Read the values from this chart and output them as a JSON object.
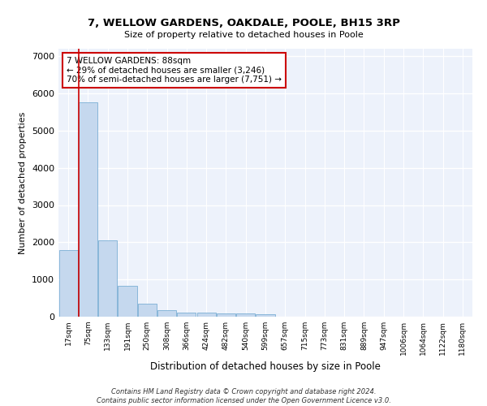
{
  "title": "7, WELLOW GARDENS, OAKDALE, POOLE, BH15 3RP",
  "subtitle": "Size of property relative to detached houses in Poole",
  "xlabel": "Distribution of detached houses by size in Poole",
  "ylabel": "Number of detached properties",
  "bar_color": "#c5d8ee",
  "bar_edge_color": "#7bafd4",
  "highlight_color": "#cc0000",
  "background_color": "#edf2fb",
  "grid_color": "#ffffff",
  "categories": [
    "17sqm",
    "75sqm",
    "133sqm",
    "191sqm",
    "250sqm",
    "308sqm",
    "366sqm",
    "424sqm",
    "482sqm",
    "540sqm",
    "599sqm",
    "657sqm",
    "715sqm",
    "773sqm",
    "831sqm",
    "889sqm",
    "947sqm",
    "1006sqm",
    "1064sqm",
    "1122sqm",
    "1180sqm"
  ],
  "values": [
    1800,
    5750,
    2050,
    820,
    340,
    185,
    115,
    100,
    95,
    80,
    75,
    0,
    0,
    0,
    0,
    0,
    0,
    0,
    0,
    0,
    0
  ],
  "highlight_bar_index": 1,
  "annotation_text": "7 WELLOW GARDENS: 88sqm\n← 29% of detached houses are smaller (3,246)\n70% of semi-detached houses are larger (7,751) →",
  "ylim": [
    0,
    7200
  ],
  "yticks": [
    0,
    1000,
    2000,
    3000,
    4000,
    5000,
    6000,
    7000
  ],
  "footer_line1": "Contains HM Land Registry data © Crown copyright and database right 2024.",
  "footer_line2": "Contains public sector information licensed under the Open Government Licence v3.0."
}
